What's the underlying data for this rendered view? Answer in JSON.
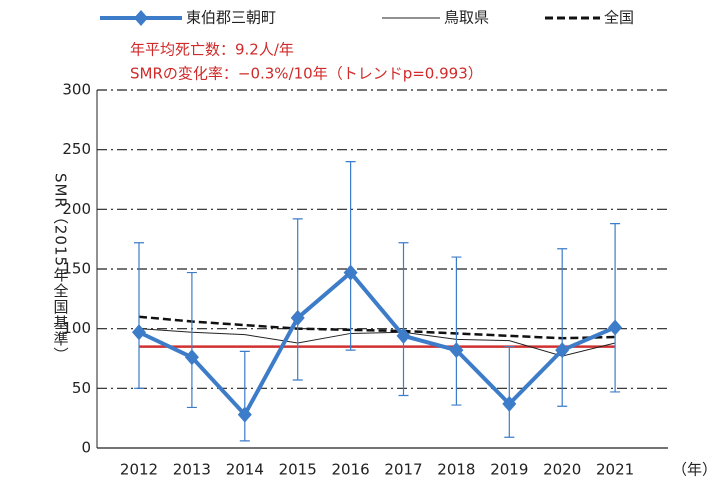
{
  "chart_data": {
    "type": "line",
    "annotations": [
      "年平均死亡数：9.2人/年",
      "SMRの変化率：−0.3%/10年（トレンドp=0.993）"
    ],
    "y_label": "SMR（2015年全国基準）",
    "x_label": "（年）",
    "categories": [
      "2012",
      "2013",
      "2014",
      "2015",
      "2016",
      "2017",
      "2018",
      "2019",
      "2020",
      "2021"
    ],
    "series": [
      {
        "name": "東伯郡三朝町",
        "color": "#3d7cc9",
        "style": "marker",
        "values": [
          97,
          76,
          28,
          109,
          147,
          94,
          82,
          37,
          82,
          101
        ],
        "upper": [
          172,
          147,
          81,
          192,
          240,
          172,
          160,
          85,
          167,
          188
        ],
        "lower": [
          50,
          34,
          6,
          57,
          82,
          44,
          36,
          9,
          35,
          47
        ]
      },
      {
        "name": "鳥取県",
        "color": "#222222",
        "style": "thin",
        "values": [
          100,
          97,
          95,
          88,
          96,
          97,
          91,
          90,
          77,
          88
        ]
      },
      {
        "name": "全国",
        "color": "#111111",
        "style": "dashed",
        "values": [
          110,
          106,
          103,
          100,
          99,
          98,
          96,
          94,
          92,
          93
        ]
      }
    ],
    "trend": {
      "color": "#d03030",
      "values": [
        85,
        85
      ]
    },
    "ylim": [
      0,
      300
    ],
    "yticks": [
      0,
      50,
      100,
      150,
      200,
      250,
      300
    ],
    "grid": true
  }
}
